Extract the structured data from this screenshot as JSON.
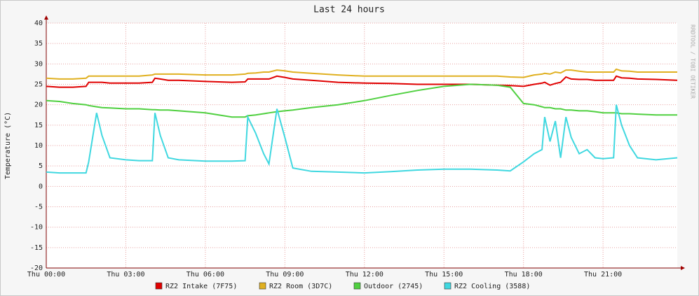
{
  "chart_data": {
    "type": "line",
    "title": "Last 24 hours",
    "y_label": "Temperature (°C)",
    "watermark": "RRDTOOL / TOBI OETIKER",
    "x": [
      0,
      0.5,
      1,
      1.5,
      1.6,
      1.9,
      2.1,
      2.4,
      3,
      3.5,
      4,
      4.1,
      4.3,
      4.6,
      5,
      6,
      7,
      7.5,
      7.6,
      7.9,
      8.2,
      8.4,
      8.7,
      9,
      9.3,
      10,
      11,
      12,
      13,
      14,
      15,
      16,
      17,
      17.5,
      18,
      18.4,
      18.7,
      18.8,
      19,
      19.2,
      19.4,
      19.6,
      19.8,
      20.1,
      20.4,
      20.7,
      21,
      21.4,
      21.5,
      21.7,
      22,
      22.3,
      23,
      23.8
    ],
    "xlim": [
      0,
      23.8
    ],
    "xticks": [
      {
        "value": 0,
        "label": "Thu 00:00"
      },
      {
        "value": 3,
        "label": "Thu 03:00"
      },
      {
        "value": 6,
        "label": "Thu 06:00"
      },
      {
        "value": 9,
        "label": "Thu 09:00"
      },
      {
        "value": 12,
        "label": "Thu 12:00"
      },
      {
        "value": 15,
        "label": "Thu 15:00"
      },
      {
        "value": 18,
        "label": "Thu 18:00"
      },
      {
        "value": 21,
        "label": "Thu 21:00"
      }
    ],
    "ylim": [
      -20,
      40
    ],
    "yticks": [
      -20,
      -15,
      -10,
      -5,
      0,
      5,
      10,
      15,
      20,
      25,
      30,
      35,
      40
    ],
    "grid": true,
    "series": [
      {
        "name": "RZ2 Intake (7F75)",
        "color": "#e00000",
        "values": [
          24.5,
          24.3,
          24.3,
          24.5,
          25.5,
          25.5,
          25.5,
          25.3,
          25.3,
          25.3,
          25.5,
          26.5,
          26.3,
          26,
          26,
          25.7,
          25.5,
          25.6,
          26.3,
          26.3,
          26.3,
          26.3,
          27,
          26.7,
          26.3,
          26,
          25.5,
          25.3,
          25.2,
          25,
          25,
          25,
          24.8,
          24.7,
          24.5,
          25,
          25.3,
          25.5,
          24.8,
          25.2,
          25.5,
          26.8,
          26.3,
          26.2,
          26.2,
          26,
          26,
          26,
          27,
          26.6,
          26.5,
          26.3,
          26.2,
          26
        ]
      },
      {
        "name": "RZ2 Room (3D7C)",
        "color": "#e0b020",
        "values": [
          26.5,
          26.3,
          26.3,
          26.5,
          27,
          27,
          27,
          27,
          27,
          27,
          27.3,
          27.5,
          27.5,
          27.5,
          27.5,
          27.3,
          27.3,
          27.5,
          27.7,
          27.8,
          28,
          28,
          28.5,
          28.3,
          28,
          27.7,
          27.3,
          27,
          27,
          27,
          27,
          27,
          27,
          26.8,
          26.7,
          27.3,
          27.5,
          27.7,
          27.5,
          28,
          27.8,
          28.5,
          28.5,
          28.2,
          28,
          28,
          28,
          28,
          28.7,
          28.3,
          28.2,
          28,
          28,
          28
        ]
      },
      {
        "name": "Outdoor (2745)",
        "color": "#50d040",
        "values": [
          21,
          20.8,
          20.3,
          20,
          19.8,
          19.5,
          19.3,
          19.2,
          19,
          19,
          18.8,
          18.8,
          18.7,
          18.7,
          18.5,
          18,
          17,
          17,
          17.3,
          17.5,
          17.8,
          18,
          18.3,
          18.5,
          18.7,
          19.3,
          20,
          21,
          22.3,
          23.5,
          24.5,
          25,
          24.8,
          24.3,
          20.3,
          20,
          19.5,
          19.3,
          19.3,
          19,
          19,
          18.7,
          18.7,
          18.5,
          18.5,
          18.3,
          18,
          18,
          18,
          17.8,
          17.8,
          17.7,
          17.5,
          17.5
        ]
      },
      {
        "name": "RZ2 Cooling (3588)",
        "color": "#40d8e0",
        "values": [
          3.5,
          3.3,
          3.3,
          3.3,
          6,
          18,
          12.5,
          7,
          6.5,
          6.3,
          6.3,
          18,
          12.5,
          7,
          6.5,
          6.2,
          6.2,
          6.3,
          17,
          13,
          8,
          5.5,
          19,
          12,
          4.5,
          3.7,
          3.5,
          3.3,
          3.6,
          4,
          4.2,
          4.2,
          4,
          3.8,
          6,
          8,
          9,
          17,
          11,
          16,
          7,
          17,
          12,
          8,
          9,
          7,
          6.8,
          7,
          20,
          15,
          10,
          7,
          6.5,
          7
        ]
      }
    ]
  }
}
